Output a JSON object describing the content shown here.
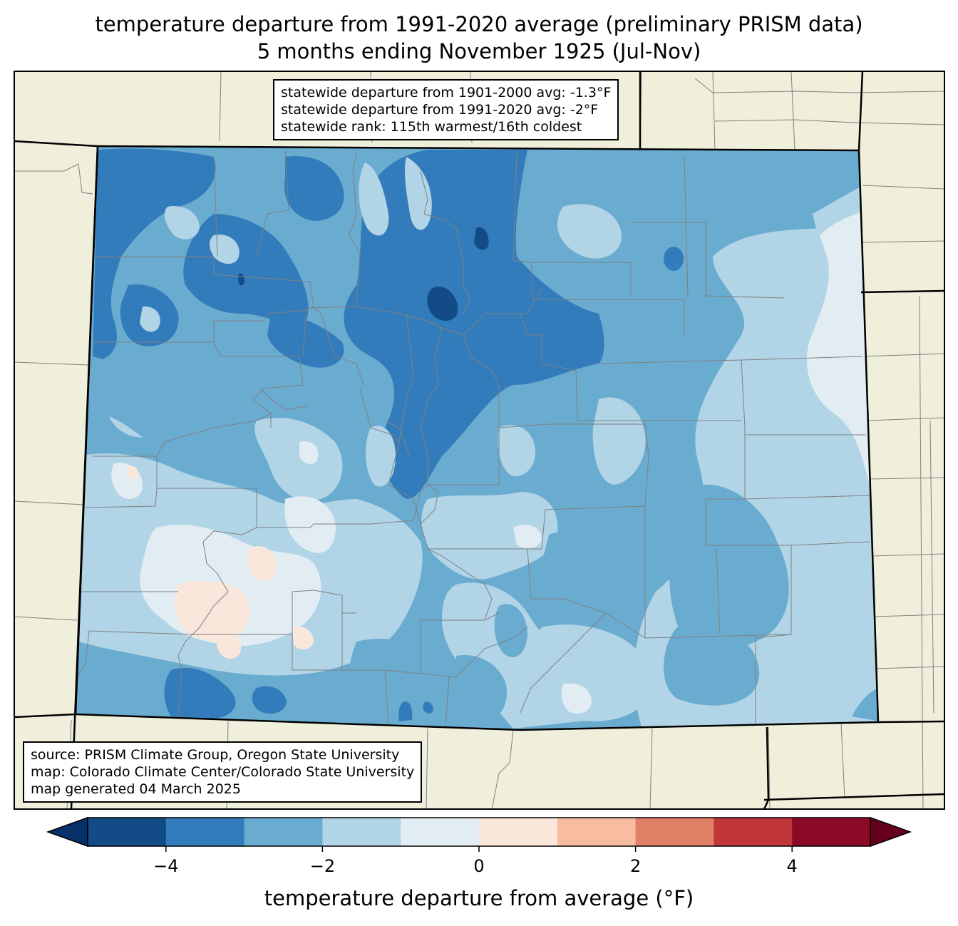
{
  "title": {
    "line1": "temperature departure from 1991-2020 average (preliminary PRISM data)",
    "line2": "5 months ending November 1925 (Jul-Nov)"
  },
  "stats": {
    "line1": "statewide departure from 1901-2000 avg: -1.3°F",
    "line2": "statewide departure from 1991-2020 avg: -2°F",
    "line3": "statewide rank: 115th warmest/16th coldest"
  },
  "source": {
    "line1": "source: PRISM Climate Group, Oregon State University",
    "line2": "map: Colorado Climate Center/Colorado State University",
    "line3": "map generated 04 March 2025"
  },
  "colorbar": {
    "label": "temperature departure from average (°F)",
    "ticks": [
      {
        "value": -4,
        "label": "−4"
      },
      {
        "value": -2,
        "label": "−2"
      },
      {
        "value": 0,
        "label": "0"
      },
      {
        "value": 2,
        "label": "2"
      },
      {
        "value": 4,
        "label": "4"
      }
    ],
    "bins": [
      {
        "from": -5,
        "to": -4,
        "color": "#134b87"
      },
      {
        "from": -4,
        "to": -3,
        "color": "#327cbb"
      },
      {
        "from": -3,
        "to": -2,
        "color": "#6aacd0"
      },
      {
        "from": -2,
        "to": -1,
        "color": "#b1d4e7"
      },
      {
        "from": -1,
        "to": 0,
        "color": "#e2edf3"
      },
      {
        "from": 0,
        "to": 1,
        "color": "#fae7dc"
      },
      {
        "from": 1,
        "to": 2,
        "color": "#f8bca0"
      },
      {
        "from": 2,
        "to": 3,
        "color": "#e17f67"
      },
      {
        "from": 3,
        "to": 4,
        "color": "#c13639"
      },
      {
        "from": 4,
        "to": 5,
        "color": "#8b0a26"
      }
    ],
    "under_color": "#08306b",
    "over_color": "#67001f"
  },
  "colors": {
    "land": "#efefdc",
    "state_border": "#000000",
    "county_border": "#808080"
  }
}
